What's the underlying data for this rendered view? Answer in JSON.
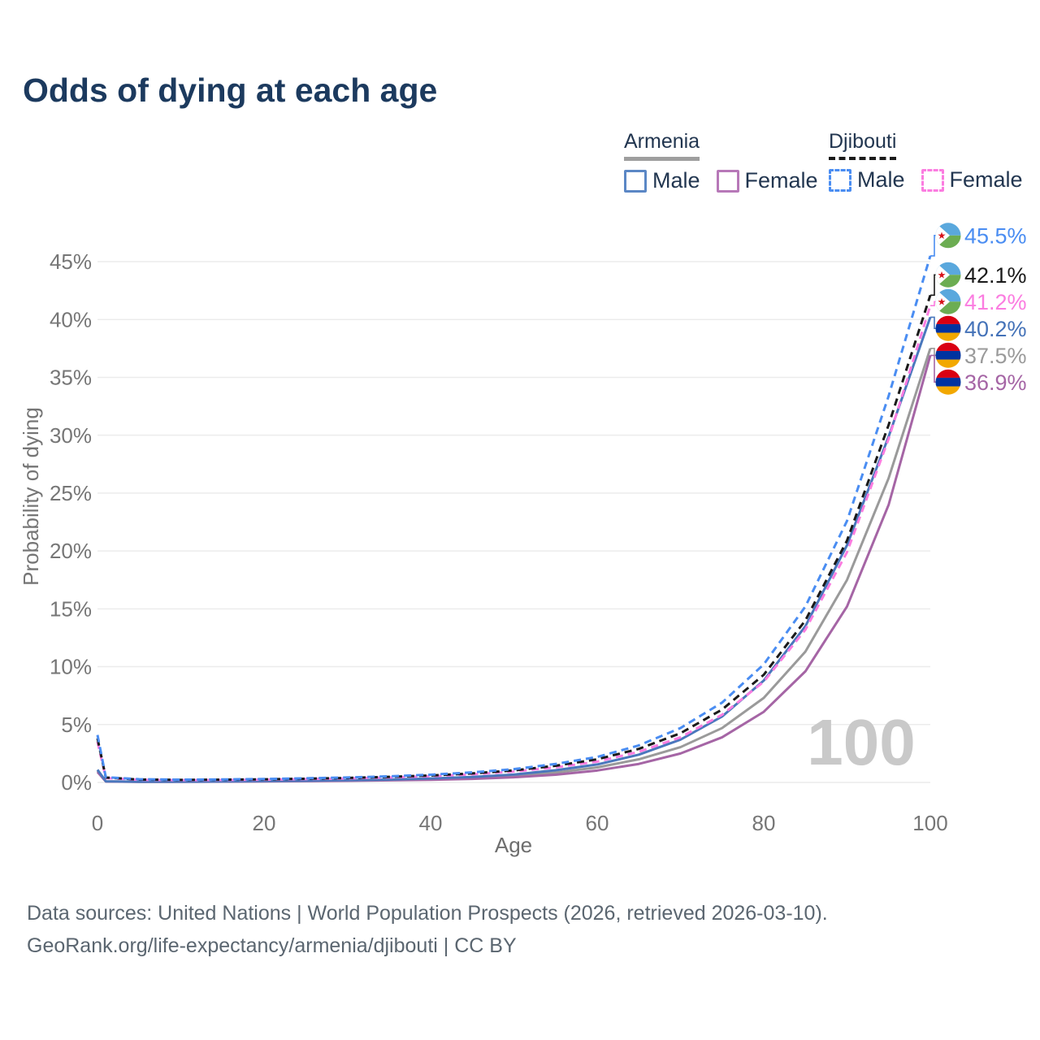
{
  "header": {
    "title": "Odds of dying at each age"
  },
  "legend": {
    "groups": [
      {
        "country": "Armenia",
        "line_style": "solid",
        "underline_color": "#9e9e9e",
        "items": [
          {
            "label": "Male",
            "color": "#5b87c5"
          },
          {
            "label": "Female",
            "color": "#b778b8"
          }
        ]
      },
      {
        "country": "Djibouti",
        "line_style": "dashed",
        "underline_color": "#1a1a1a",
        "items": [
          {
            "label": "Male",
            "color": "#4a8df2"
          },
          {
            "label": "Female",
            "color": "#fb7ce0"
          }
        ]
      }
    ]
  },
  "chart_data": {
    "type": "line",
    "title": "Odds of dying at each age",
    "xlabel": "Age",
    "ylabel": "Probability of dying",
    "x_ticks": [
      0,
      20,
      40,
      60,
      80,
      100
    ],
    "y_ticks": [
      "0%",
      "5%",
      "10%",
      "15%",
      "20%",
      "25%",
      "30%",
      "35%",
      "40%",
      "45%"
    ],
    "xlim": [
      0,
      100
    ],
    "ylim": [
      0,
      47
    ],
    "grid": "horizontal",
    "legend_position": "top-right",
    "watermark": "100",
    "ages": [
      0,
      1,
      5,
      10,
      15,
      20,
      25,
      30,
      35,
      40,
      45,
      50,
      55,
      60,
      65,
      70,
      75,
      80,
      85,
      90,
      95,
      100
    ],
    "series": [
      {
        "id": "armenia-both",
        "country": "Armenia",
        "sex": "Both",
        "color": "#9a9a9a",
        "dash": null,
        "flag": "armenia",
        "end_label": "37.5%",
        "label_color": "#9a9a9a",
        "end_value": 37.5,
        "values": [
          1.0,
          0.09,
          0.055,
          0.06,
          0.08,
          0.1,
          0.13,
          0.16,
          0.21,
          0.28,
          0.39,
          0.56,
          0.85,
          1.3,
          2.0,
          3.05,
          4.7,
          7.3,
          11.3,
          17.5,
          26.3,
          37.5
        ]
      },
      {
        "id": "armenia-female",
        "country": "Armenia",
        "sex": "Female",
        "color": "#a565a5",
        "dash": null,
        "flag": "armenia",
        "end_label": "36.9%",
        "label_color": "#a565a5",
        "end_value": 36.9,
        "values": [
          0.9,
          0.08,
          0.05,
          0.055,
          0.07,
          0.09,
          0.11,
          0.14,
          0.18,
          0.23,
          0.31,
          0.45,
          0.67,
          1.03,
          1.6,
          2.5,
          3.9,
          6.1,
          9.6,
          15.2,
          24.0,
          36.9
        ]
      },
      {
        "id": "armenia-male",
        "country": "Armenia",
        "sex": "Male",
        "color": "#4a77bd",
        "dash": null,
        "flag": "armenia",
        "end_label": "40.2%",
        "label_color": "#4472b8",
        "end_value": 40.2,
        "values": [
          1.1,
          0.1,
          0.06,
          0.07,
          0.09,
          0.12,
          0.15,
          0.19,
          0.25,
          0.34,
          0.47,
          0.68,
          1.05,
          1.55,
          2.4,
          3.7,
          5.7,
          8.8,
          13.5,
          20.5,
          29.9,
          40.2
        ]
      },
      {
        "id": "djibouti-female",
        "country": "Djibouti",
        "sex": "Female",
        "color": "#fb7ce0",
        "dash": "9 6",
        "flag": "djibouti",
        "end_label": "41.2%",
        "label_color": "#fb7ce0",
        "end_value": 41.2,
        "values": [
          3.5,
          0.38,
          0.23,
          0.2,
          0.21,
          0.24,
          0.29,
          0.35,
          0.43,
          0.54,
          0.7,
          0.94,
          1.3,
          1.8,
          2.65,
          3.9,
          5.85,
          8.7,
          13.2,
          19.9,
          29.7,
          41.2
        ]
      },
      {
        "id": "djibouti-both",
        "country": "Djibouti",
        "sex": "Both",
        "color": "#1a1a1a",
        "dash": "9 6",
        "flag": "djibouti",
        "end_label": "42.1%",
        "label_color": "#1a1a1a",
        "end_value": 42.1,
        "values": [
          3.8,
          0.42,
          0.25,
          0.22,
          0.24,
          0.27,
          0.32,
          0.39,
          0.48,
          0.6,
          0.78,
          1.04,
          1.44,
          2.0,
          2.9,
          4.25,
          6.3,
          9.3,
          14.0,
          20.9,
          30.9,
          42.1
        ]
      },
      {
        "id": "djibouti-male",
        "country": "Djibouti",
        "sex": "Male",
        "color": "#4a8df2",
        "dash": "9 6",
        "flag": "djibouti",
        "end_label": "45.5%",
        "label_color": "#4a8df2",
        "end_value": 45.5,
        "values": [
          4.1,
          0.45,
          0.28,
          0.24,
          0.26,
          0.3,
          0.36,
          0.43,
          0.53,
          0.67,
          0.87,
          1.15,
          1.6,
          2.2,
          3.2,
          4.7,
          6.9,
          10.2,
          15.2,
          22.6,
          33.4,
          45.5
        ]
      }
    ],
    "flag_colors": {
      "djibouti": {
        "blue": "#5aa8dd",
        "green": "#6cad52",
        "white": "#ffffff",
        "star": "#d7141a"
      },
      "armenia": {
        "red": "#d90012",
        "blue": "#0033a0",
        "orange": "#f2a800"
      }
    }
  },
  "footer": {
    "line1": "Data sources: United Nations | World Population Prospects (2026, retrieved 2026-03-10).",
    "line2": "GeoRank.org/life-expectancy/armenia/djibouti | CC BY"
  }
}
